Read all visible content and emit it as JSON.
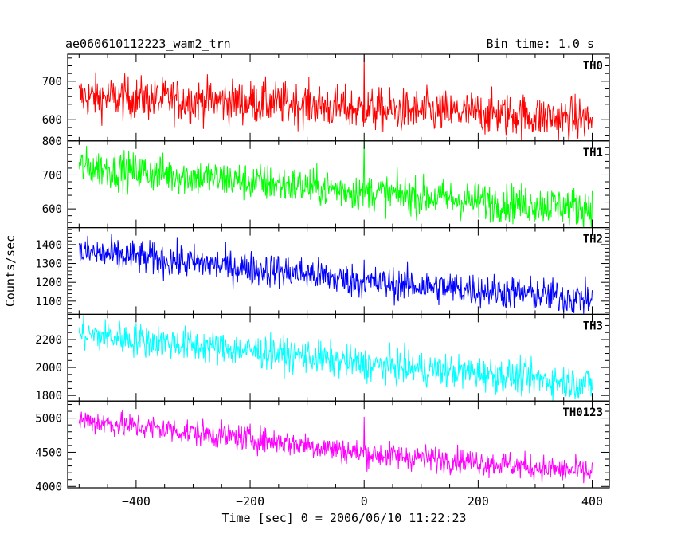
{
  "header": {
    "title": "ae060610112223_wam2_trn",
    "bin_time": "Bin time: 1.0 s"
  },
  "ylabel": "Counts/sec",
  "xlabel": "Time [sec] 0 = 2006/06/10 11:22:23",
  "chart_data": {
    "type": "line",
    "title": "ae060610112223_wam2_trn",
    "xlabel": "Time [sec] 0 = 2006/06/10 11:22:23",
    "ylabel": "Counts/sec",
    "xlim": [
      -520,
      430
    ],
    "xticks": [
      -400,
      -200,
      0,
      200,
      400
    ],
    "x_start": -500,
    "x_end": 400,
    "bin_time_s": 1.0,
    "grid": false,
    "panels": [
      {
        "name": "TH0",
        "color": "#ff0000",
        "ylim": [
          545,
          770
        ],
        "yticks": [
          600,
          700
        ],
        "trend": [
          [
            -500,
            660
          ],
          [
            -300,
            650
          ],
          [
            -100,
            640
          ],
          [
            0,
            625
          ],
          [
            200,
            618
          ],
          [
            400,
            600
          ]
        ],
        "noise": 28,
        "spike": {
          "x": 0,
          "value": 770
        }
      },
      {
        "name": "TH1",
        "color": "#00ff00",
        "ylim": [
          545,
          800
        ],
        "yticks": [
          600,
          700,
          800
        ],
        "trend": [
          [
            -500,
            725
          ],
          [
            -300,
            695
          ],
          [
            -100,
            665
          ],
          [
            0,
            650
          ],
          [
            200,
            622
          ],
          [
            400,
            605
          ]
        ],
        "noise": 28,
        "spike": {
          "x": 0,
          "value": 800
        }
      },
      {
        "name": "TH2",
        "color": "#0000ff",
        "ylim": [
          1030,
          1490
        ],
        "yticks": [
          1100,
          1200,
          1300,
          1400
        ],
        "trend": [
          [
            -500,
            1360
          ],
          [
            -300,
            1305
          ],
          [
            -100,
            1245
          ],
          [
            0,
            1200
          ],
          [
            200,
            1160
          ],
          [
            400,
            1110
          ]
        ],
        "noise": 45,
        "spike": {
          "x": 0,
          "value": 1320
        }
      },
      {
        "name": "TH3",
        "color": "#00ffff",
        "ylim": [
          1760,
          2380
        ],
        "yticks": [
          1800,
          2000,
          2200
        ],
        "trend": [
          [
            -500,
            2240
          ],
          [
            -300,
            2160
          ],
          [
            -100,
            2080
          ],
          [
            0,
            2020
          ],
          [
            200,
            1960
          ],
          [
            400,
            1880
          ]
        ],
        "noise": 60,
        "spike": null
      },
      {
        "name": "TH0123",
        "color": "#ff00ff",
        "ylim": [
          3980,
          5250
        ],
        "yticks": [
          4000,
          4500,
          5000
        ],
        "trend": [
          [
            -500,
            4970
          ],
          [
            -300,
            4790
          ],
          [
            -100,
            4610
          ],
          [
            0,
            4480
          ],
          [
            200,
            4360
          ],
          [
            400,
            4200
          ]
        ],
        "noise": 95,
        "spike": {
          "x": 0,
          "value": 5020
        }
      }
    ]
  }
}
